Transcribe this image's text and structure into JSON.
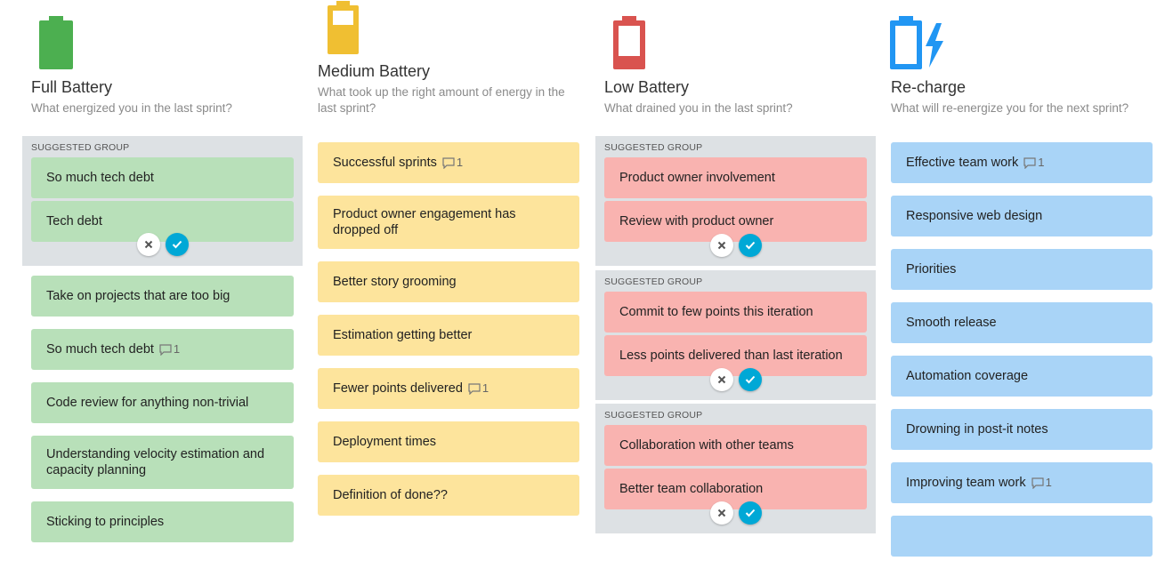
{
  "columns": [
    {
      "title": "Full Battery",
      "subtitle": "What energized you in the last sprint?",
      "icon": "full-battery-icon",
      "color": "#b8e0b9",
      "groups": [
        {
          "label": "SUGGESTED GROUP",
          "cards": [
            "So much tech debt",
            "Tech debt"
          ]
        }
      ],
      "cards": [
        {
          "text": "Take on projects that are too big",
          "comments": ""
        },
        {
          "text": "So much tech debt",
          "comments": "1"
        },
        {
          "text": "Code review for anything non-trivial",
          "comments": ""
        },
        {
          "text": "Understanding velocity estimation and capacity planning",
          "comments": ""
        },
        {
          "text": "Sticking to principles",
          "comments": ""
        }
      ]
    },
    {
      "title": "Medium Battery",
      "subtitle": "What took up the right amount of energy in the last sprint?",
      "icon": "medium-battery-icon",
      "color": "#fde49c",
      "groups": [],
      "cards": [
        {
          "text": "Successful sprints",
          "comments": "1"
        },
        {
          "text": "Product owner engagement has dropped off",
          "comments": ""
        },
        {
          "text": "Better story grooming",
          "comments": ""
        },
        {
          "text": "Estimation getting better",
          "comments": ""
        },
        {
          "text": "Fewer points delivered",
          "comments": "1"
        },
        {
          "text": "Deployment times",
          "comments": ""
        },
        {
          "text": "Definition of done??",
          "comments": ""
        }
      ]
    },
    {
      "title": "Low Battery",
      "subtitle": "What drained you in the last sprint?",
      "icon": "low-battery-icon",
      "color": "#f9b3b0",
      "groups": [
        {
          "label": "SUGGESTED GROUP",
          "cards": [
            "Product owner involvement",
            "Review with product owner"
          ]
        },
        {
          "label": "SUGGESTED GROUP",
          "cards": [
            "Commit to few points this iteration",
            "Less points delivered than last iteration"
          ]
        },
        {
          "label": "SUGGESTED GROUP",
          "cards": [
            "Collaboration with other teams",
            "Better team collaboration"
          ]
        }
      ],
      "cards": []
    },
    {
      "title": "Re-charge",
      "subtitle": "What will re-energize you for the next sprint?",
      "icon": "recharge-battery-icon",
      "color": "#a9d4f7",
      "groups": [],
      "cards": [
        {
          "text": "Effective team work",
          "comments": "1"
        },
        {
          "text": "Responsive web design",
          "comments": ""
        },
        {
          "text": "Priorities",
          "comments": ""
        },
        {
          "text": "Smooth release",
          "comments": ""
        },
        {
          "text": "Automation coverage",
          "comments": ""
        },
        {
          "text": "Drowning in post-it notes",
          "comments": ""
        },
        {
          "text": "Improving team work",
          "comments": "1"
        },
        {
          "text": "",
          "comments": ""
        }
      ]
    }
  ],
  "colors": {
    "full": "#4caf50",
    "medium": "#f0bf32",
    "low": "#d9534f",
    "recharge": "#2196f3",
    "accept": "#00a8d6",
    "group_bg": "#dde1e4"
  }
}
